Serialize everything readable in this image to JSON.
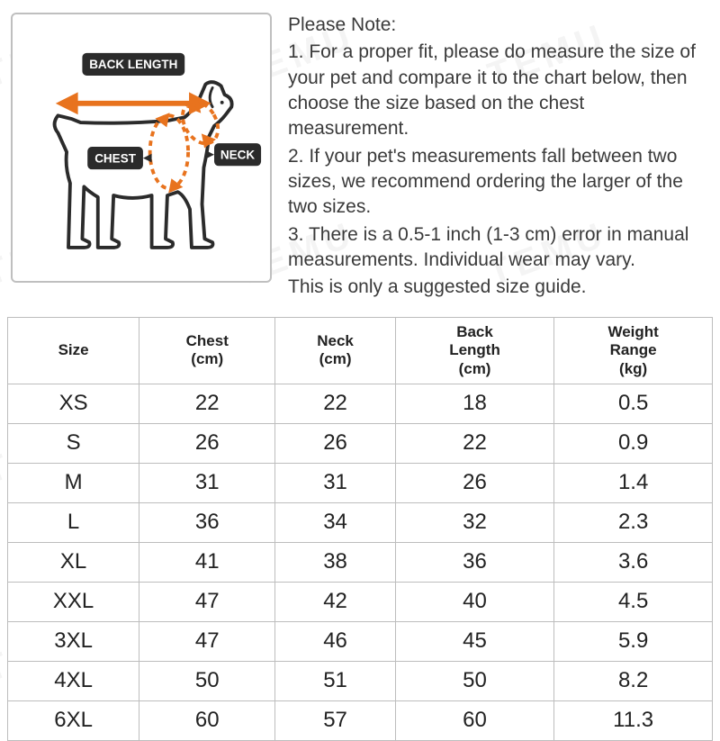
{
  "diagram": {
    "labels": {
      "back_length": "BACK LENGTH",
      "chest": "CHEST",
      "neck": "NECK"
    },
    "colors": {
      "outline": "#2b2b2b",
      "arrow": "#e8731e",
      "dashed": "#e8731e",
      "pill_bg": "#2b2b2b",
      "pill_text": "#ffffff"
    }
  },
  "notes": {
    "heading": "Please Note:",
    "items": [
      "1. For a proper fit, please do measure the size of your pet and compare it to the chart below, then choose the size based on the chest measurement.",
      "2. If your pet's measurements fall between two sizes, we recommend ordering the larger of the two sizes.",
      "3. There is a 0.5-1 inch (1-3 cm) error in manual measurements. Individual wear may vary.",
      "This is only a suggested size guide."
    ]
  },
  "table": {
    "columns": [
      {
        "label_line1": "Size",
        "label_line2": ""
      },
      {
        "label_line1": "Chest",
        "label_line2": "(cm)"
      },
      {
        "label_line1": "Neck",
        "label_line2": "(cm)"
      },
      {
        "label_line1": "Back",
        "label_line2": "Length",
        "label_line3": "(cm)"
      },
      {
        "label_line1": "Weight",
        "label_line2": "Range",
        "label_line3": "(kg)"
      }
    ],
    "rows": [
      {
        "size": "XS",
        "chest": "22",
        "neck": "22",
        "back": "18",
        "weight": "0.5"
      },
      {
        "size": "S",
        "chest": "26",
        "neck": "26",
        "back": "22",
        "weight": "0.9"
      },
      {
        "size": "M",
        "chest": "31",
        "neck": "31",
        "back": "26",
        "weight": "1.4"
      },
      {
        "size": "L",
        "chest": "36",
        "neck": "34",
        "back": "32",
        "weight": "2.3"
      },
      {
        "size": "XL",
        "chest": "41",
        "neck": "38",
        "back": "36",
        "weight": "3.6"
      },
      {
        "size": "XXL",
        "chest": "47",
        "neck": "42",
        "back": "40",
        "weight": "4.5"
      },
      {
        "size": "3XL",
        "chest": "47",
        "neck": "46",
        "back": "45",
        "weight": "5.9"
      },
      {
        "size": "4XL",
        "chest": "50",
        "neck": "51",
        "back": "50",
        "weight": "8.2"
      },
      {
        "size": "6XL",
        "chest": "60",
        "neck": "57",
        "back": "60",
        "weight": "11.3"
      }
    ]
  },
  "watermark_text": "TEMU"
}
